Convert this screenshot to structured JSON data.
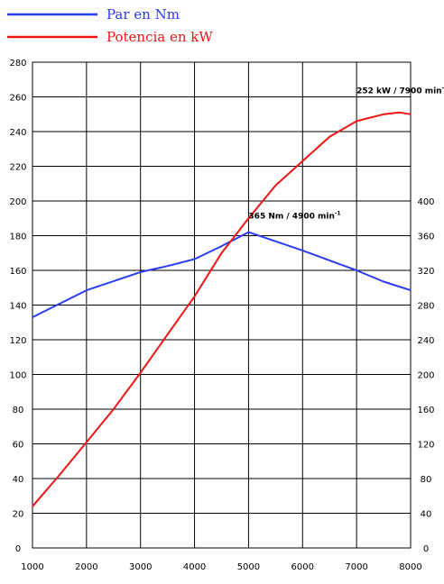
{
  "chart_data": {
    "type": "line",
    "x_ticks": [
      "1000",
      "2000",
      "3000",
      "4000",
      "5000",
      "6000",
      "7000",
      "8000"
    ],
    "xlim": [
      1000,
      8000
    ],
    "y_left_ticks": [
      "0",
      "20",
      "40",
      "60",
      "80",
      "100",
      "120",
      "140",
      "160",
      "180",
      "200",
      "220",
      "240",
      "260",
      "280"
    ],
    "ylim_left": [
      0,
      280
    ],
    "y_right_ticks": [
      "0",
      "40",
      "80",
      "120",
      "160",
      "200",
      "240",
      "280",
      "320",
      "360",
      "400"
    ],
    "ylim_right": [
      0,
      560
    ],
    "grid": true,
    "legend_position": "top-left",
    "series": [
      {
        "name": "Par en Nm",
        "color": "#2a3cf0",
        "axis": "right",
        "x": [
          1000,
          2000,
          3000,
          3500,
          4000,
          4500,
          5000,
          6000,
          7000,
          7500,
          8000
        ],
        "y": [
          266,
          297,
          318,
          325,
          333,
          348,
          364,
          343,
          320,
          307,
          297
        ]
      },
      {
        "name": "Potencia en kW",
        "color": "#f01414",
        "axis": "left",
        "x": [
          1000,
          1500,
          2000,
          2500,
          3000,
          3500,
          4000,
          4500,
          5000,
          5500,
          6000,
          6500,
          7000,
          7500,
          7800,
          8000
        ],
        "y": [
          24,
          42,
          61,
          80,
          101,
          123,
          145,
          170,
          190,
          209,
          223,
          237,
          246,
          250,
          251,
          250
        ]
      }
    ],
    "annotations": [
      {
        "main": "252 kW  / 7900 min",
        "sup": "-1",
        "x": 7000,
        "y_left": 262
      },
      {
        "main": "365 Nm  / 4900 min",
        "sup": "-1",
        "x": 5000,
        "y_left": 190
      }
    ]
  }
}
